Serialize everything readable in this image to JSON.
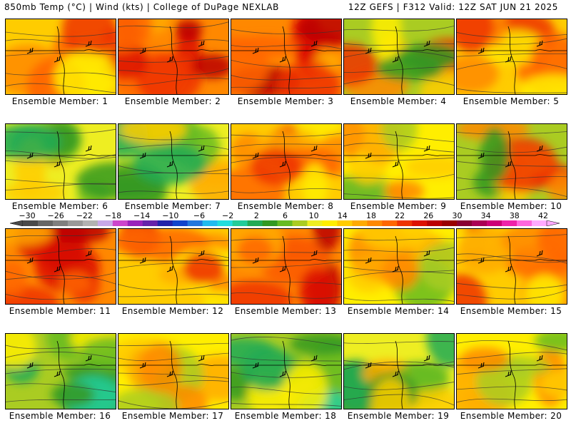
{
  "header": {
    "left": "850mb Temp (°C) | Wind (kts) | College of DuPage NEXLAB",
    "right": "12Z GEFS | F312 Valid: 12Z SAT JUN 21 2025"
  },
  "colorbar": {
    "labels": [
      "−30",
      "−26",
      "−22",
      "−18",
      "−14",
      "−10",
      "−6",
      "−2",
      "2",
      "6",
      "10",
      "14",
      "18",
      "22",
      "26",
      "30",
      "34",
      "38",
      "42"
    ],
    "colors": [
      "#4a4a4a",
      "#666666",
      "#7f7f7f",
      "#999999",
      "#b2b2b2",
      "#c8a8e8",
      "#cc44cc",
      "#9922bb",
      "#6622aa",
      "#2222aa",
      "#1144cc",
      "#2277dd",
      "#22bbee",
      "#22dddd",
      "#22cc99",
      "#22aa55",
      "#339922",
      "#66bb22",
      "#aacc22",
      "#eeee22",
      "#ffee00",
      "#ffcc00",
      "#ffaa00",
      "#ff8800",
      "#ff6600",
      "#ee3300",
      "#dd1100",
      "#bb0000",
      "#990000",
      "#880033",
      "#aa0055",
      "#cc0077",
      "#ee22aa",
      "#ff66dd",
      "#ffaaff"
    ]
  },
  "panels": [
    {
      "label": "Ensemble Member: 1",
      "theme": "warm"
    },
    {
      "label": "Ensemble Member: 2",
      "theme": "hot"
    },
    {
      "label": "Ensemble Member: 3",
      "theme": "hot"
    },
    {
      "label": "Ensemble Member: 4",
      "theme": "greenwarm"
    },
    {
      "label": "Ensemble Member: 5",
      "theme": "warm"
    },
    {
      "label": "Ensemble Member: 6",
      "theme": "green"
    },
    {
      "label": "Ensemble Member: 7",
      "theme": "green"
    },
    {
      "label": "Ensemble Member: 8",
      "theme": "warm"
    },
    {
      "label": "Ensemble Member: 9",
      "theme": "mild"
    },
    {
      "label": "Ensemble Member: 10",
      "theme": "greenwarm"
    },
    {
      "label": "Ensemble Member: 11",
      "theme": "hot"
    },
    {
      "label": "Ensemble Member: 12",
      "theme": "warm"
    },
    {
      "label": "Ensemble Member: 13",
      "theme": "hot"
    },
    {
      "label": "Ensemble Member: 14",
      "theme": "mild"
    },
    {
      "label": "Ensemble Member: 15",
      "theme": "warm"
    },
    {
      "label": "Ensemble Member: 16",
      "theme": "cool"
    },
    {
      "label": "Ensemble Member: 17",
      "theme": "mild"
    },
    {
      "label": "Ensemble Member: 18",
      "theme": "cool"
    },
    {
      "label": "Ensemble Member: 19",
      "theme": "green"
    },
    {
      "label": "Ensemble Member: 20",
      "theme": "mild"
    }
  ]
}
